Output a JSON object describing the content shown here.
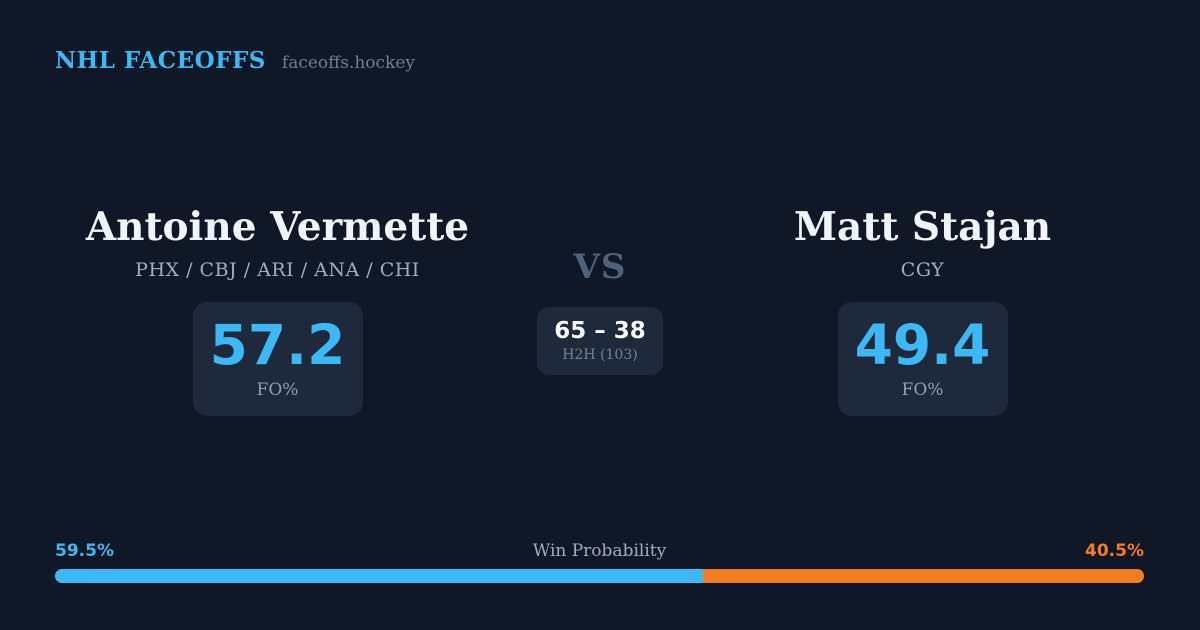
{
  "header": {
    "brand": "NHL FACEOFFS",
    "site": "faceoffs.hockey"
  },
  "matchup": {
    "vs_label": "VS",
    "h2h": {
      "score": "65 – 38",
      "label": "H2H (103)"
    },
    "players": [
      {
        "name": "Antoine Vermette",
        "teams": "PHX / CBJ / ARI / ANA / CHI",
        "fo_pct": "57.2",
        "stat_label": "FO%"
      },
      {
        "name": "Matt Stajan",
        "teams": "CGY",
        "fo_pct": "49.4",
        "stat_label": "FO%"
      }
    ]
  },
  "win_probability": {
    "label": "Win Probability",
    "left_label": "59.5%",
    "right_label": "40.5%",
    "left_value": 59.5,
    "right_value": 40.5
  },
  "colors": {
    "background": "#101827",
    "card": "#1E293B",
    "accent_blue": "#3CB9F4",
    "accent_orange": "#F57D1E",
    "text_primary": "#F1F5F9",
    "text_muted": "#9DAFC4",
    "text_dim": "#6F7E94",
    "vs_gray": "#50627A"
  }
}
